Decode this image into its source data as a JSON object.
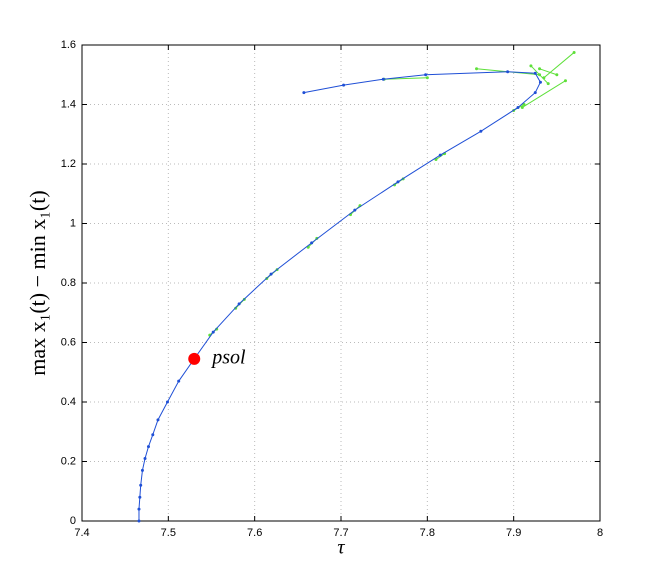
{
  "chart_data": {
    "type": "line",
    "x_label": "τ",
    "y_label": "max x₁(t) − min x₁(t)",
    "xlim": [
      7.4,
      8
    ],
    "ylim": [
      0,
      1.6
    ],
    "xticks": [
      7.4,
      7.5,
      7.6,
      7.7,
      7.8,
      7.9,
      8
    ],
    "yticks": [
      0,
      0.2,
      0.4,
      0.6,
      0.8,
      1,
      1.2,
      1.4,
      1.6
    ],
    "grid": true,
    "series": [
      {
        "color": "#1f4fd6",
        "x": [
          7.466,
          7.466,
          7.467,
          7.468,
          7.47,
          7.473,
          7.477,
          7.482,
          7.488,
          7.499,
          7.512,
          7.53,
          7.552,
          7.582,
          7.619,
          7.666,
          7.716,
          7.766,
          7.815,
          7.862,
          7.905,
          7.925,
          7.931,
          7.925,
          7.893,
          7.798,
          7.749,
          7.703,
          7.657
        ],
        "values": [
          0,
          0.04,
          0.08,
          0.12,
          0.17,
          0.21,
          0.25,
          0.29,
          0.34,
          0.4,
          0.47,
          0.545,
          0.635,
          0.73,
          0.83,
          0.935,
          1.045,
          1.14,
          1.23,
          1.31,
          1.39,
          1.44,
          1.475,
          1.505,
          1.51,
          1.5,
          1.485,
          1.465,
          1.44
        ]
      },
      {
        "color": "#5ee03a",
        "x": [
          7.548,
          7.556,
          null,
          7.578,
          7.588,
          null,
          7.614,
          7.626,
          null,
          7.662,
          7.672,
          null,
          7.711,
          7.722,
          null,
          7.762,
          7.772,
          null,
          7.81,
          7.82,
          null,
          7.9,
          7.912,
          null,
          7.857,
          7.93,
          null,
          7.75,
          7.8,
          null,
          7.92,
          7.94,
          null,
          7.97,
          7.935,
          null,
          7.96,
          7.91,
          null,
          7.93,
          7.95
        ],
        "values": [
          0.625,
          0.645,
          null,
          0.715,
          0.745,
          null,
          0.815,
          0.845,
          null,
          0.92,
          0.95,
          null,
          1.03,
          1.06,
          null,
          1.13,
          1.15,
          null,
          1.215,
          1.235,
          null,
          1.38,
          1.4,
          null,
          1.52,
          1.5,
          null,
          1.485,
          1.49,
          null,
          1.53,
          1.47,
          null,
          1.575,
          1.49,
          null,
          1.48,
          1.39,
          null,
          1.52,
          1.5
        ]
      }
    ],
    "annotations": [
      {
        "text": "psol",
        "x": 7.53,
        "y": 0.545,
        "color": "#ff0000"
      }
    ]
  }
}
